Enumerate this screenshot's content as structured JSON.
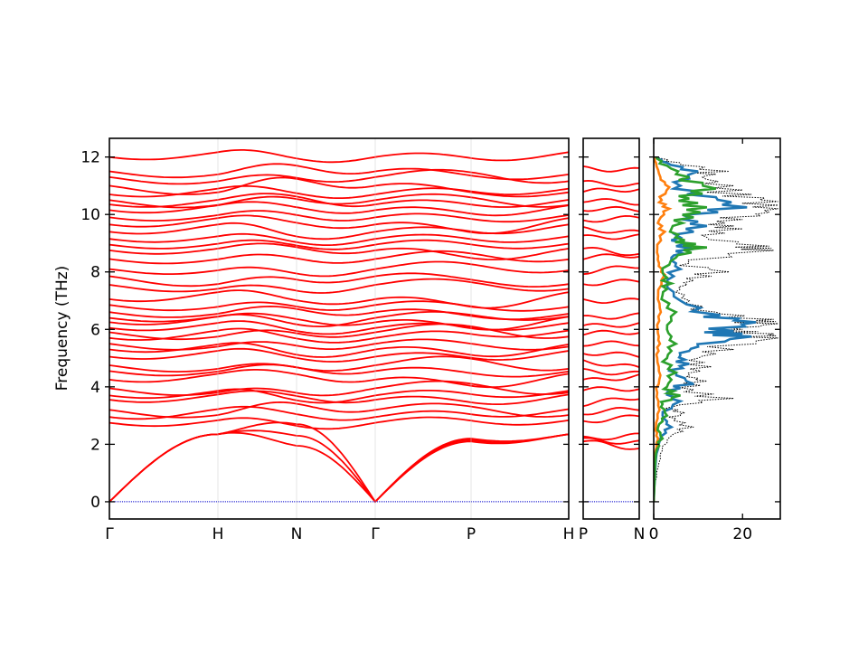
{
  "chart_data": [
    {
      "type": "line",
      "panel": "phonon band structure",
      "ylabel": "Frequency (THz)",
      "ylim": [
        -0.6,
        12.65
      ],
      "yticks": [
        0,
        2,
        4,
        6,
        8,
        10,
        12
      ],
      "segments": [
        {
          "from": "Γ",
          "to": "H"
        },
        {
          "from": "H",
          "to": "N"
        },
        {
          "from": "N",
          "to": "Γ"
        },
        {
          "from": "Γ",
          "to": "P"
        },
        {
          "from": "P",
          "to": "H"
        }
      ],
      "xtick_labels": [
        "Γ",
        "H",
        "N",
        "Γ",
        "P",
        "H"
      ],
      "series_color": "#ff0000",
      "zero_line_color": "#0000cc",
      "acoustic_branches_THz": {
        "Γ": [
          0,
          0,
          0
        ],
        "H": [
          2.35,
          2.35,
          2.35
        ],
        "N": [
          1.95,
          2.3,
          2.7
        ],
        "P": [
          2.1,
          2.15,
          2.2
        ]
      },
      "band_frequencies_at_Γ_THz": [
        2.75,
        2.95,
        3.2,
        3.55,
        3.7,
        3.95,
        4.25,
        4.55,
        4.75,
        5.05,
        5.3,
        5.5,
        5.7,
        5.9,
        6.05,
        6.25,
        6.4,
        6.6,
        6.85,
        7.05,
        7.55,
        7.85,
        8.1,
        8.45,
        8.75,
        8.95,
        9.15,
        9.4,
        9.65,
        9.9,
        10.15,
        10.35,
        10.5,
        10.7,
        11.0,
        11.3,
        11.5,
        12.0
      ]
    },
    {
      "type": "line",
      "panel": "band structure P to N",
      "xtick_labels": [
        "P",
        "N"
      ],
      "ylim": [
        -0.6,
        12.65
      ],
      "series_color": "#ff0000",
      "band_frequencies_at_P_THz": [
        2.1,
        2.15,
        2.2,
        2.8,
        3.1,
        3.4,
        3.9,
        4.2,
        4.55,
        4.9,
        5.2,
        5.5,
        5.85,
        6.1,
        6.4,
        7.0,
        7.6,
        8.0,
        8.5,
        8.8,
        9.2,
        9.5,
        9.8,
        10.2,
        10.5,
        10.8,
        11.1,
        11.6
      ]
    },
    {
      "type": "line",
      "panel": "density of states",
      "xlim": [
        0,
        28.5
      ],
      "xticks": [
        0,
        20
      ],
      "ylim": [
        -0.6,
        12.65
      ],
      "series": [
        {
          "role": "total",
          "color": "#000000",
          "style": "dotted",
          "points": [
            [
              0,
              0
            ],
            [
              0.3,
              0.5
            ],
            [
              1,
              1.2
            ],
            [
              2,
              1.8
            ],
            [
              4,
              2.3
            ],
            [
              9,
              2.6
            ],
            [
              5,
              2.9
            ],
            [
              7,
              3.1
            ],
            [
              4,
              3.3
            ],
            [
              18,
              3.6
            ],
            [
              9,
              3.9
            ],
            [
              12,
              4.2
            ],
            [
              8,
              4.4
            ],
            [
              13,
              4.7
            ],
            [
              10,
              5.0
            ],
            [
              18,
              5.3
            ],
            [
              28,
              5.7
            ],
            [
              27,
              5.85
            ],
            [
              20,
              6.0
            ],
            [
              28,
              6.2
            ],
            [
              27,
              6.35
            ],
            [
              14,
              6.6
            ],
            [
              8,
              7.0
            ],
            [
              6,
              7.4
            ],
            [
              9,
              7.7
            ],
            [
              17,
              8.0
            ],
            [
              8,
              8.3
            ],
            [
              27,
              8.75
            ],
            [
              26,
              8.9
            ],
            [
              12,
              9.2
            ],
            [
              20,
              9.5
            ],
            [
              16,
              9.7
            ],
            [
              24,
              9.95
            ],
            [
              28,
              10.2
            ],
            [
              28,
              10.45
            ],
            [
              22,
              10.7
            ],
            [
              18,
              11.0
            ],
            [
              11,
              11.3
            ],
            [
              17,
              11.5
            ],
            [
              6,
              11.8
            ],
            [
              0.5,
              12.0
            ]
          ]
        },
        {
          "role": "projected-1",
          "color": "#1f77b4",
          "points": [
            [
              0,
              0
            ],
            [
              0.5,
              1.5
            ],
            [
              1.5,
              2.2
            ],
            [
              4,
              2.6
            ],
            [
              2,
              3.0
            ],
            [
              6,
              3.5
            ],
            [
              3,
              3.8
            ],
            [
              9,
              4.1
            ],
            [
              5,
              4.5
            ],
            [
              8,
              4.8
            ],
            [
              6,
              5.1
            ],
            [
              10,
              5.4
            ],
            [
              22,
              5.75
            ],
            [
              18,
              5.95
            ],
            [
              23,
              6.25
            ],
            [
              15,
              6.5
            ],
            [
              6,
              7.0
            ],
            [
              3,
              7.6
            ],
            [
              6,
              8.1
            ],
            [
              4,
              8.5
            ],
            [
              9,
              8.8
            ],
            [
              6,
              9.2
            ],
            [
              12,
              9.6
            ],
            [
              8,
              9.9
            ],
            [
              21,
              10.25
            ],
            [
              14,
              10.6
            ],
            [
              6,
              11.0
            ],
            [
              10,
              11.5
            ],
            [
              3,
              11.8
            ],
            [
              0.5,
              12.0
            ]
          ]
        },
        {
          "role": "projected-2",
          "color": "#ff7f0e",
          "points": [
            [
              0,
              0
            ],
            [
              0.3,
              1.6
            ],
            [
              1,
              2.2
            ],
            [
              0.5,
              2.6
            ],
            [
              1.3,
              3.2
            ],
            [
              0.8,
              3.8
            ],
            [
              1.5,
              4.4
            ],
            [
              0.8,
              5.0
            ],
            [
              1.4,
              5.5
            ],
            [
              0.9,
              6.0
            ],
            [
              1.6,
              6.6
            ],
            [
              1,
              7.2
            ],
            [
              2.5,
              7.9
            ],
            [
              1.2,
              8.3
            ],
            [
              0.8,
              8.8
            ],
            [
              2.5,
              9.4
            ],
            [
              1.2,
              9.8
            ],
            [
              3.5,
              10.2
            ],
            [
              1.8,
              10.5
            ],
            [
              3.5,
              10.95
            ],
            [
              1.5,
              11.3
            ],
            [
              0.5,
              11.8
            ],
            [
              0,
              12.0
            ]
          ]
        },
        {
          "role": "projected-3",
          "color": "#2ca02c",
          "points": [
            [
              0,
              0
            ],
            [
              0.5,
              1.7
            ],
            [
              2,
              2.2
            ],
            [
              1,
              2.6
            ],
            [
              3,
              3.0
            ],
            [
              2,
              3.4
            ],
            [
              6,
              3.7
            ],
            [
              3,
              4.0
            ],
            [
              5,
              4.5
            ],
            [
              3,
              5.0
            ],
            [
              5,
              5.5
            ],
            [
              3,
              6.0
            ],
            [
              5,
              6.6
            ],
            [
              2,
              7.2
            ],
            [
              4,
              7.6
            ],
            [
              2,
              8.0
            ],
            [
              5,
              8.5
            ],
            [
              12,
              8.85
            ],
            [
              7,
              9.1
            ],
            [
              4,
              9.5
            ],
            [
              9,
              9.9
            ],
            [
              12,
              10.25
            ],
            [
              8,
              10.55
            ],
            [
              14,
              10.9
            ],
            [
              8,
              11.3
            ],
            [
              3,
              11.7
            ],
            [
              0.5,
              12.0
            ]
          ]
        }
      ]
    }
  ]
}
